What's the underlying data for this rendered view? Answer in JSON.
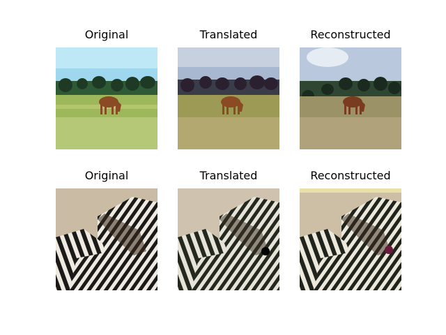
{
  "figure": {
    "rows": [
      {
        "subject": "horse",
        "panels": [
          {
            "title": "Original",
            "variant": "original"
          },
          {
            "title": "Translated",
            "variant": "translated"
          },
          {
            "title": "Reconstructed",
            "variant": "reconstructed"
          }
        ]
      },
      {
        "subject": "zebra",
        "panels": [
          {
            "title": "Original",
            "variant": "original"
          },
          {
            "title": "Translated",
            "variant": "translated"
          },
          {
            "title": "Reconstructed",
            "variant": "reconstructed"
          }
        ]
      }
    ]
  },
  "colors": {
    "sky_original": "#9fd8ee",
    "sky_translated": "#a8b8d0",
    "sky_reconstructed": "#b9c8dc",
    "grass_original": "#9cb85a",
    "grass_translated": "#9c9a55",
    "grass_reconstructed": "#9c9268",
    "trees": "#1e3a24",
    "horse": "#8a4a24",
    "zebra_bg": "#c9bba4",
    "zebra_dark": "#1c1a18",
    "zebra_light": "#eeeae2"
  }
}
